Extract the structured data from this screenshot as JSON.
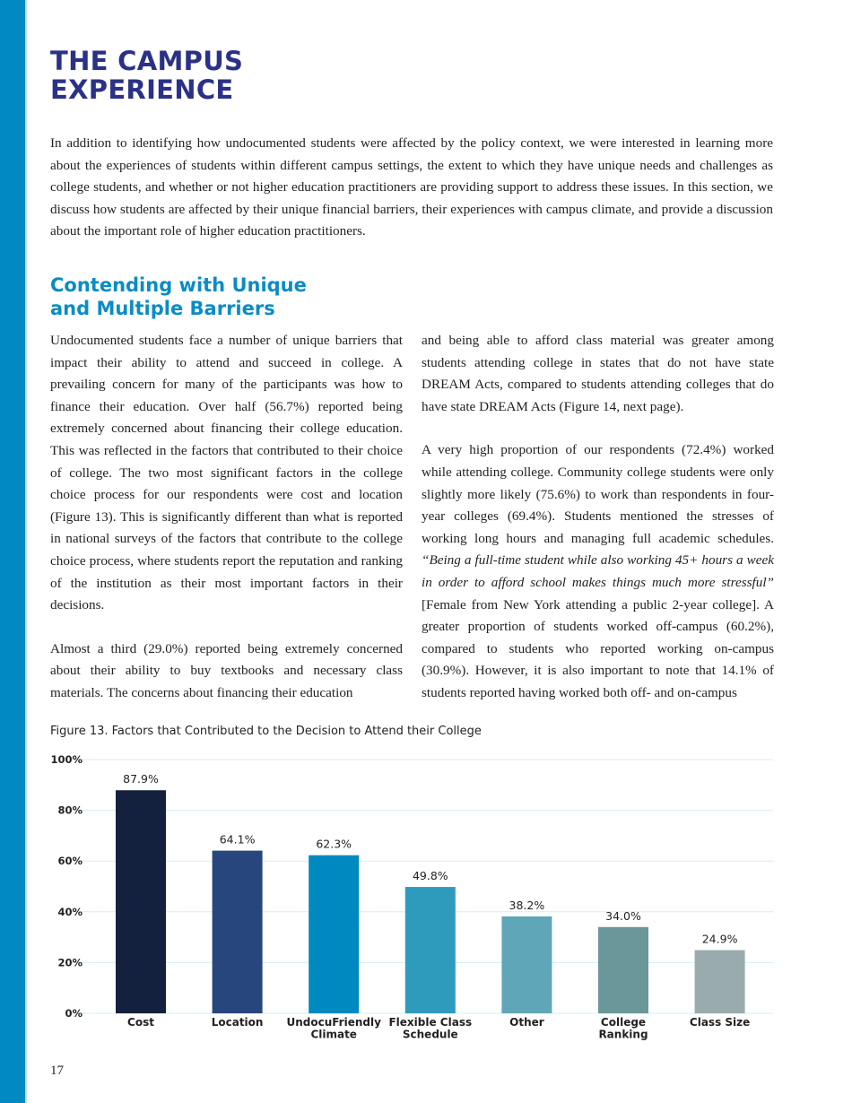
{
  "page": {
    "title_lines": [
      "THE CAMPUS",
      "EXPERIENCE"
    ],
    "intro": "In addition to identifying how undocumented students were affected by the policy context, we were interested in learning more about the experiences of students within different campus settings, the extent to which they have unique needs and challenges as college students, and whether or not higher education practitioners are providing support to address these issues. In this section, we discuss how students are affected by their unique financial barriers, their experiences with campus climate, and provide a discussion about the important role of higher education practitioners.",
    "subheading_lines": [
      "Contending with Unique",
      "and Multiple Barriers"
    ],
    "left_col": [
      "Undocumented students face a number of unique barriers that impact their ability to attend and succeed in college. A prevailing concern for many of the participants was how to finance their education. Over half (56.7%) reported being extremely concerned about financing their college education. This was reflected in the factors that contributed to their choice of college. The two most significant factors in the college choice process for our respondents were cost and location (Figure 13). This is significantly different than what is reported in national surveys of the factors that contribute to the college choice process, where students report the reputation and ranking of the institution as their most important factors in their decisions.",
      "Almost a third (29.0%) reported being extremely concerned about their ability to buy textbooks and necessary class materials. The concerns about financing their education"
    ],
    "right_col": {
      "p1": "and being able to afford class material was greater among students attending college in states that do not have state DREAM Acts, compared to students attending colleges that do have state DREAM Acts (Figure 14, next page).",
      "p2_start": "A very high proportion of our respondents (72.4%) worked while attending college. Community college students were only slightly more likely (75.6%) to work than respondents in four-year colleges (69.4%). Students mentioned the stresses of working long hours and managing full academic schedules. ",
      "p2_quote": "“Being a full-time student while also working 45+ hours a week in order to afford school makes things much more stressful”",
      "p2_end": " [Female from New York attending a public 2-year college]. A greater proportion of students worked off-campus (60.2%), compared to students who reported working on-campus (30.9%). However, it is also important to note that 14.1% of students reported having worked both off- and on-campus"
    },
    "page_number": "17",
    "colors": {
      "title": "#2a3187",
      "subheading": "#0a8cc4",
      "sidebar": "#0089c2"
    }
  },
  "chart_data": {
    "type": "bar",
    "title": "Figure 13. Factors that Contributed to the Decision to Attend their College",
    "categories": [
      [
        "Cost"
      ],
      [
        "Location"
      ],
      [
        "UndocuFriendly",
        "Climate"
      ],
      [
        "Flexible Class",
        "Schedule"
      ],
      [
        "Other"
      ],
      [
        "College",
        "Ranking"
      ],
      [
        "Class Size"
      ]
    ],
    "values": [
      87.9,
      64.1,
      62.3,
      49.8,
      38.2,
      34.0,
      24.9
    ],
    "value_labels": [
      "87.9%",
      "64.1%",
      "62.3%",
      "49.8%",
      "38.2%",
      "34.0%",
      "24.9%"
    ],
    "bar_colors": [
      "#13213f",
      "#27467d",
      "#0089c1",
      "#2e9bbd",
      "#5fa6b8",
      "#6a9799",
      "#9aabad"
    ],
    "yticks": [
      "0%",
      "20%",
      "40%",
      "60%",
      "80%",
      "100%"
    ],
    "ylim": [
      0,
      100
    ],
    "grid": true,
    "xlabel": "",
    "ylabel": ""
  }
}
